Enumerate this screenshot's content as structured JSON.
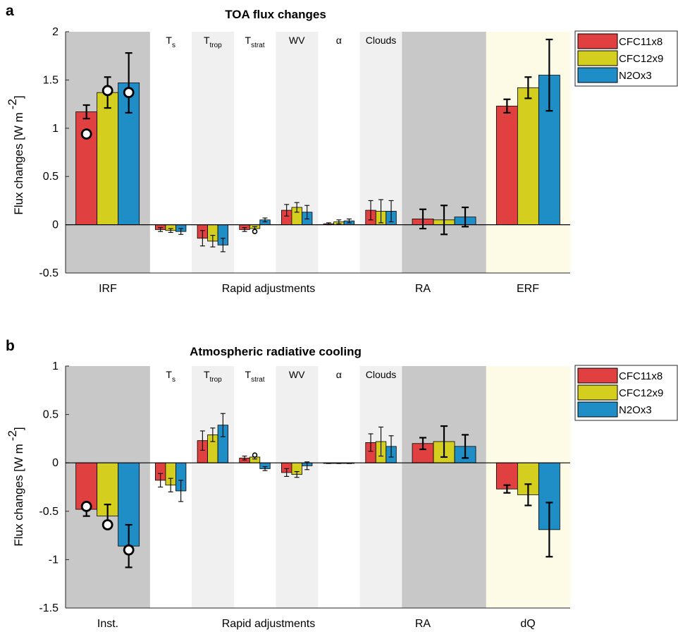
{
  "colors": {
    "CFC11x8": "#e04040",
    "CFC12x9": "#d4cf1f",
    "N2Ox3": "#1f8ec6"
  },
  "shading": {
    "dark": "#c8c8c8",
    "light": "#f0f0f0",
    "yellow": "#fdfbe6"
  },
  "legend": [
    "CFC11x8",
    "CFC12x9",
    "N2Ox3"
  ],
  "column_labels": [
    {
      "main": "T",
      "sub": "s"
    },
    {
      "main": "T",
      "sub": "trop"
    },
    {
      "main": "T",
      "sub": "strat"
    },
    {
      "main": "WV",
      "sub": ""
    },
    {
      "main": "α",
      "sub": ""
    },
    {
      "main": "Clouds",
      "sub": ""
    }
  ],
  "chart_data": [
    {
      "panel": "a",
      "type": "bar",
      "title": "TOA flux changes",
      "ylabel": "Flux changes [W m",
      "ylabel_sup": "-2",
      "ylabel_close": "]",
      "ylim": [
        -0.5,
        2
      ],
      "yticks": [
        "2",
        "1.5",
        "1",
        "0.5",
        "0",
        "-0.5"
      ],
      "ytick_values": [
        2,
        1.5,
        1,
        0.5,
        0,
        -0.5
      ],
      "xtick_labels": [
        "IRF",
        "Rapid adjustments",
        "RA",
        "ERF"
      ],
      "groups": [
        "IRF",
        "Ts",
        "Ttrop",
        "Tstrat",
        "WV",
        "alpha",
        "Clouds",
        "RA",
        "ERF"
      ],
      "series": [
        {
          "name": "CFC11x8",
          "values": [
            1.17,
            -0.05,
            -0.14,
            -0.05,
            0.15,
            0.01,
            0.15,
            0.06,
            1.23
          ],
          "err": [
            0.07,
            0.02,
            0.08,
            0.02,
            0.06,
            0.01,
            0.1,
            0.1,
            0.07
          ]
        },
        {
          "name": "CFC12x9",
          "values": [
            1.37,
            -0.06,
            -0.17,
            -0.04,
            0.18,
            0.03,
            0.14,
            0.05,
            1.42
          ],
          "err": [
            0.16,
            0.02,
            0.06,
            0.02,
            0.05,
            0.02,
            0.12,
            0.15,
            0.11
          ]
        },
        {
          "name": "N2Ox3",
          "values": [
            1.47,
            -0.07,
            -0.21,
            0.05,
            0.13,
            0.04,
            0.14,
            0.08,
            1.55
          ],
          "err": [
            0.31,
            0.03,
            0.07,
            0.02,
            0.07,
            0.02,
            0.11,
            0.1,
            0.37
          ]
        }
      ],
      "markers": [
        {
          "group": 0,
          "series": 0,
          "y": 0.94,
          "size": "large"
        },
        {
          "group": 0,
          "series": 1,
          "y": 1.39,
          "size": "large"
        },
        {
          "group": 0,
          "series": 2,
          "y": 1.37,
          "size": "large"
        },
        {
          "group": 3,
          "series": 1,
          "y": -0.07,
          "size": "small"
        }
      ]
    },
    {
      "panel": "b",
      "type": "bar",
      "title": "Atmospheric radiative cooling",
      "ylabel": "Flux changes [W m",
      "ylabel_sup": "-2",
      "ylabel_close": "]",
      "ylim": [
        -1.5,
        1
      ],
      "yticks": [
        "1",
        "0.5",
        "0",
        "-0.5",
        "-1",
        "-1.5"
      ],
      "ytick_values": [
        1,
        0.5,
        0,
        -0.5,
        -1,
        -1.5
      ],
      "xtick_labels": [
        "Inst.",
        "Rapid adjustments",
        "RA",
        "dQ"
      ],
      "groups": [
        "Inst.",
        "Ts",
        "Ttrop",
        "Tstrat",
        "WV",
        "alpha",
        "Clouds",
        "RA",
        "dQ"
      ],
      "series": [
        {
          "name": "CFC11x8",
          "values": [
            -0.48,
            -0.18,
            0.23,
            0.05,
            -0.1,
            -0.005,
            0.21,
            0.2,
            -0.27
          ],
          "err": [
            0.07,
            0.07,
            0.1,
            0.02,
            0.04,
            0.002,
            0.09,
            0.06,
            0.04
          ]
        },
        {
          "name": "CFC12x9",
          "values": [
            -0.55,
            -0.23,
            0.29,
            0.06,
            -0.12,
            -0.005,
            0.22,
            0.22,
            -0.33
          ],
          "err": [
            0.12,
            0.07,
            0.07,
            0.02,
            0.03,
            0.002,
            0.15,
            0.16,
            0.11
          ]
        },
        {
          "name": "N2Ox3",
          "values": [
            -0.86,
            -0.29,
            0.39,
            -0.06,
            -0.03,
            -0.005,
            0.17,
            0.17,
            -0.69
          ],
          "err": [
            0.22,
            0.11,
            0.12,
            0.02,
            0.04,
            0.002,
            0.11,
            0.12,
            0.28
          ]
        }
      ],
      "markers": [
        {
          "group": 0,
          "series": 0,
          "y": -0.45,
          "size": "large"
        },
        {
          "group": 0,
          "series": 1,
          "y": -0.64,
          "size": "large"
        },
        {
          "group": 0,
          "series": 2,
          "y": -0.9,
          "size": "large"
        },
        {
          "group": 3,
          "series": 1,
          "y": 0.08,
          "size": "small"
        }
      ]
    }
  ]
}
